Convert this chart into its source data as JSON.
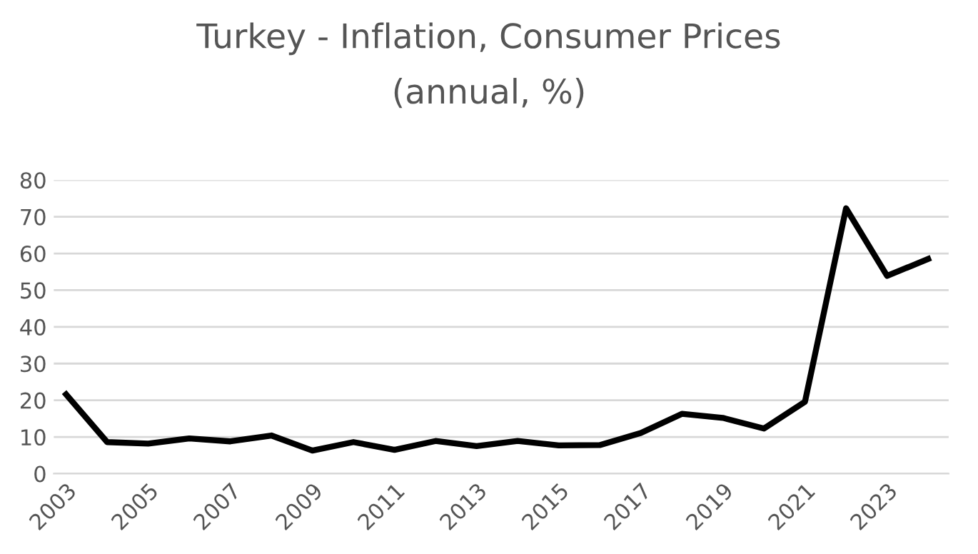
{
  "chart_data": {
    "type": "line",
    "title": "Turkey - Inflation, Consumer Prices",
    "subtitle": "(annual, %)",
    "x": [
      2003,
      2004,
      2005,
      2006,
      2007,
      2008,
      2009,
      2010,
      2011,
      2012,
      2013,
      2014,
      2015,
      2016,
      2017,
      2018,
      2019,
      2020,
      2021,
      2022,
      2023,
      2024
    ],
    "series": [
      {
        "color": "#000000",
        "values": [
          21.6,
          8.6,
          8.2,
          9.6,
          8.8,
          10.4,
          6.3,
          8.6,
          6.5,
          8.9,
          7.5,
          8.9,
          7.7,
          7.8,
          11.1,
          16.3,
          15.2,
          12.3,
          19.6,
          72.3,
          53.9,
          58.5
        ]
      }
    ],
    "xlim": [
      2002.7,
      2024.5
    ],
    "xticks": [
      2003,
      2005,
      2007,
      2009,
      2011,
      2013,
      2015,
      2017,
      2019,
      2021,
      2023
    ],
    "ylim": [
      0,
      80
    ],
    "yticks": [
      0,
      10,
      20,
      30,
      40,
      50,
      60,
      70,
      80
    ],
    "grid": "y",
    "legend": false
  }
}
